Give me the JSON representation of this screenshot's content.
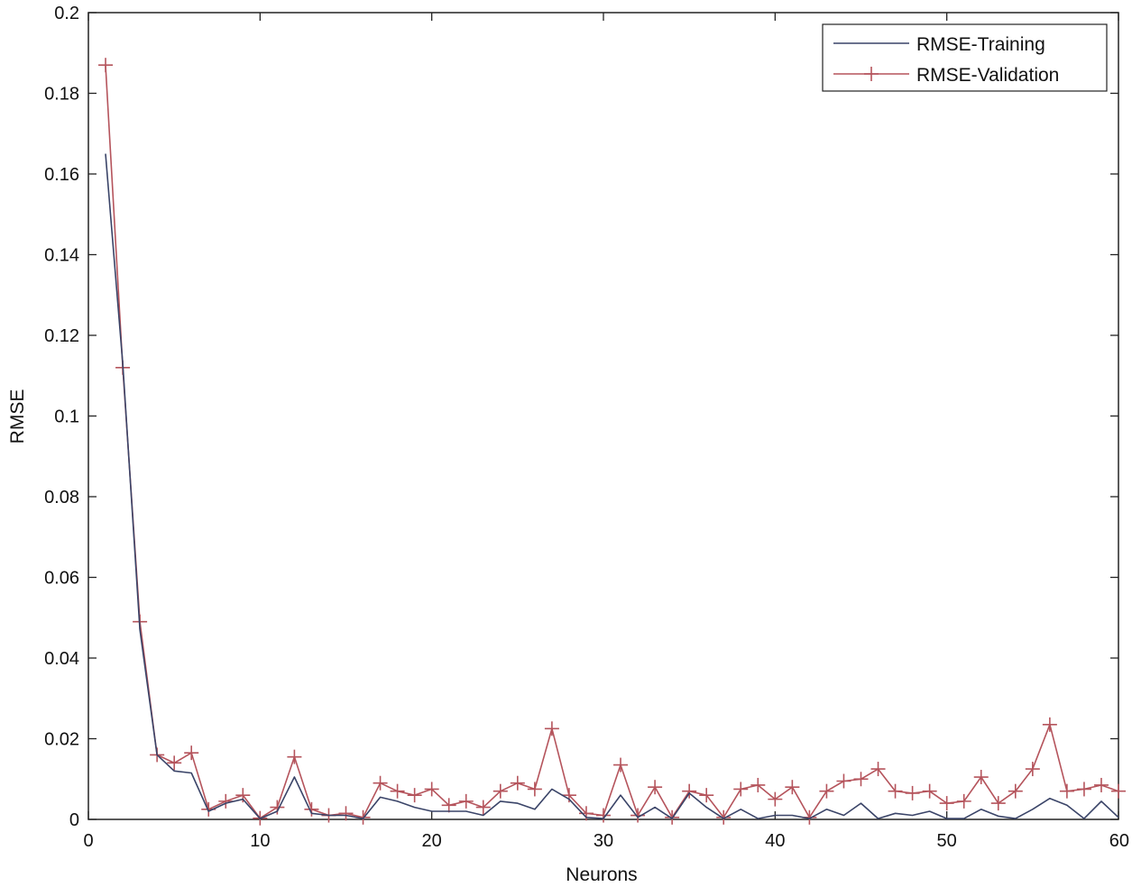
{
  "chart_data": {
    "type": "line",
    "title": "",
    "xlabel": "Neurons",
    "ylabel": "RMSE",
    "xlim": [
      0,
      60
    ],
    "ylim": [
      0,
      0.2
    ],
    "xticks": [
      0,
      10,
      20,
      30,
      40,
      50,
      60
    ],
    "yticks": [
      0,
      0.02,
      0.04,
      0.06,
      0.08,
      0.1,
      0.12,
      0.14,
      0.16,
      0.18,
      0.2
    ],
    "ytick_labels": [
      "0",
      "0.02",
      "0.04",
      "0.06",
      "0.08",
      "0.1",
      "0.12",
      "0.14",
      "0.16",
      "0.18",
      "0.2"
    ],
    "grid": false,
    "legend_position": "top-right",
    "x": [
      1,
      2,
      3,
      4,
      5,
      6,
      7,
      8,
      9,
      10,
      11,
      12,
      13,
      14,
      15,
      16,
      17,
      18,
      19,
      20,
      21,
      22,
      23,
      24,
      25,
      26,
      27,
      28,
      29,
      30,
      31,
      32,
      33,
      34,
      35,
      36,
      37,
      38,
      39,
      40,
      41,
      42,
      43,
      44,
      45,
      46,
      47,
      48,
      49,
      50,
      51,
      52,
      53,
      54,
      55,
      56,
      57,
      58,
      59,
      60
    ],
    "series": [
      {
        "name": "RMSE-Training",
        "color": "#3a4468",
        "marker": "none",
        "values": [
          0.165,
          0.113,
          0.047,
          0.016,
          0.012,
          0.0115,
          0.002,
          0.004,
          0.005,
          0.0002,
          0.002,
          0.0105,
          0.0015,
          0.001,
          0.001,
          0.0002,
          0.0055,
          0.0045,
          0.003,
          0.002,
          0.002,
          0.002,
          0.001,
          0.0045,
          0.004,
          0.0025,
          0.0075,
          0.005,
          0.0005,
          0.0002,
          0.006,
          0.0005,
          0.003,
          0.0002,
          0.0065,
          0.003,
          0.0002,
          0.0025,
          0.0002,
          0.001,
          0.001,
          0.0002,
          0.0025,
          0.001,
          0.004,
          0.0002,
          0.0015,
          0.001,
          0.002,
          0.0002,
          0.0002,
          0.0025,
          0.0008,
          0.0002,
          0.0025,
          0.0052,
          0.0035,
          0.0002,
          0.0045,
          0.0005
        ]
      },
      {
        "name": "RMSE-Validation",
        "color": "#b5545c",
        "marker": "+",
        "values": [
          0.187,
          0.112,
          0.049,
          0.016,
          0.014,
          0.0165,
          0.0025,
          0.0045,
          0.006,
          0.0003,
          0.003,
          0.0155,
          0.0025,
          0.001,
          0.0015,
          0.0005,
          0.009,
          0.007,
          0.006,
          0.0075,
          0.0035,
          0.0045,
          0.003,
          0.007,
          0.009,
          0.0075,
          0.0225,
          0.006,
          0.0015,
          0.001,
          0.0135,
          0.001,
          0.008,
          0.0005,
          0.007,
          0.006,
          0.0005,
          0.0075,
          0.0085,
          0.005,
          0.008,
          0.0005,
          0.007,
          0.0095,
          0.01,
          0.0125,
          0.007,
          0.0065,
          0.007,
          0.004,
          0.0045,
          0.0105,
          0.004,
          0.007,
          0.0125,
          0.0235,
          0.007,
          0.0075,
          0.0085,
          0.007
        ]
      }
    ]
  }
}
